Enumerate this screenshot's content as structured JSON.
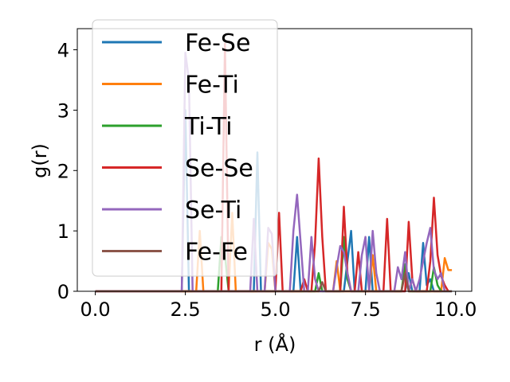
{
  "chart_data": {
    "type": "line",
    "xlabel": "r (Å)",
    "ylabel": "g(r)",
    "xlim": [
      -0.5,
      10.45
    ],
    "ylim": [
      0,
      4.35
    ],
    "xticks": [
      "0.0",
      "2.5",
      "5.0",
      "7.5",
      "10.0"
    ],
    "yticks": [
      "0",
      "1",
      "2",
      "3",
      "4"
    ],
    "grid": false,
    "legend_position": "upper-left",
    "series": [
      {
        "name": "Fe-Se",
        "color": "#1f77b4",
        "points": [
          [
            0,
            0
          ],
          [
            2.4,
            0
          ],
          [
            2.5,
            3.0
          ],
          [
            2.6,
            0
          ],
          [
            4.4,
            0
          ],
          [
            4.5,
            2.3
          ],
          [
            4.6,
            0
          ],
          [
            5.5,
            0
          ],
          [
            5.6,
            0.9
          ],
          [
            5.7,
            0
          ],
          [
            6.9,
            0
          ],
          [
            7.0,
            0.5
          ],
          [
            7.1,
            1.0
          ],
          [
            7.2,
            0
          ],
          [
            7.5,
            0
          ],
          [
            7.6,
            0.9
          ],
          [
            7.7,
            0
          ],
          [
            8.6,
            0
          ],
          [
            8.7,
            0.3
          ],
          [
            8.8,
            0
          ],
          [
            9.0,
            0
          ],
          [
            9.1,
            0.8
          ],
          [
            9.2,
            0.1
          ],
          [
            9.3,
            0.2
          ],
          [
            9.4,
            0
          ],
          [
            9.9,
            0
          ]
        ]
      },
      {
        "name": "Fe-Ti",
        "color": "#ff7f0e",
        "points": [
          [
            0,
            0
          ],
          [
            2.8,
            0
          ],
          [
            2.9,
            1.0
          ],
          [
            3.0,
            0
          ],
          [
            3.7,
            0
          ],
          [
            3.8,
            1.3
          ],
          [
            3.9,
            0
          ],
          [
            4.7,
            0
          ],
          [
            4.8,
            0.8
          ],
          [
            4.9,
            0.7
          ],
          [
            5.0,
            0
          ],
          [
            6.6,
            0
          ],
          [
            6.7,
            0.5
          ],
          [
            6.8,
            0
          ],
          [
            7.6,
            0
          ],
          [
            7.7,
            0.6
          ],
          [
            7.8,
            0
          ],
          [
            8.5,
            0
          ],
          [
            8.6,
            0.4
          ],
          [
            8.7,
            0
          ],
          [
            9.6,
            0
          ],
          [
            9.7,
            0.55
          ],
          [
            9.8,
            0.35
          ],
          [
            9.9,
            0.35
          ]
        ]
      },
      {
        "name": "Ti-Ti",
        "color": "#2ca02c",
        "points": [
          [
            0,
            0
          ],
          [
            3.4,
            0
          ],
          [
            3.5,
            0.9
          ],
          [
            3.6,
            0.6
          ],
          [
            3.7,
            0
          ],
          [
            6.1,
            0
          ],
          [
            6.2,
            0.3
          ],
          [
            6.3,
            0
          ],
          [
            6.8,
            0
          ],
          [
            6.9,
            0.9
          ],
          [
            7.0,
            0.2
          ],
          [
            7.1,
            0
          ],
          [
            8.5,
            0
          ],
          [
            8.6,
            0.45
          ],
          [
            8.7,
            0
          ],
          [
            9.3,
            0
          ],
          [
            9.4,
            0.4
          ],
          [
            9.5,
            0.1
          ],
          [
            9.6,
            0
          ]
        ]
      },
      {
        "name": "Se-Se",
        "color": "#d62728",
        "points": [
          [
            0,
            0
          ],
          [
            3.5,
            0
          ],
          [
            3.6,
            4.1
          ],
          [
            3.7,
            0
          ],
          [
            5.0,
            0
          ],
          [
            5.1,
            1.3
          ],
          [
            5.2,
            0
          ],
          [
            5.7,
            0
          ],
          [
            5.8,
            0.2
          ],
          [
            5.9,
            0
          ],
          [
            6.0,
            0
          ],
          [
            6.1,
            0.8
          ],
          [
            6.2,
            2.2
          ],
          [
            6.3,
            0.9
          ],
          [
            6.4,
            0
          ],
          [
            6.8,
            0
          ],
          [
            6.9,
            1.4
          ],
          [
            7.0,
            0.3
          ],
          [
            7.1,
            0
          ],
          [
            7.2,
            0
          ],
          [
            7.3,
            0.65
          ],
          [
            7.4,
            0
          ],
          [
            8.0,
            0
          ],
          [
            8.1,
            1.2
          ],
          [
            8.2,
            0
          ],
          [
            8.6,
            0
          ],
          [
            8.7,
            1.15
          ],
          [
            8.8,
            0.2
          ],
          [
            8.9,
            0
          ],
          [
            9.2,
            0
          ],
          [
            9.3,
            0.5
          ],
          [
            9.4,
            1.55
          ],
          [
            9.5,
            0.6
          ],
          [
            9.6,
            0.25
          ],
          [
            9.7,
            0.1
          ],
          [
            9.8,
            0
          ]
        ]
      },
      {
        "name": "Se-Ti",
        "color": "#9467bd",
        "points": [
          [
            0,
            0
          ],
          [
            2.4,
            0
          ],
          [
            2.5,
            3.95
          ],
          [
            2.6,
            3.5
          ],
          [
            2.7,
            0
          ],
          [
            4.3,
            0
          ],
          [
            4.4,
            1.2
          ],
          [
            4.5,
            0
          ],
          [
            4.7,
            0
          ],
          [
            4.8,
            1.05
          ],
          [
            4.9,
            0.95
          ],
          [
            5.0,
            0
          ],
          [
            5.4,
            0
          ],
          [
            5.5,
            1.0
          ],
          [
            5.6,
            1.6
          ],
          [
            5.7,
            0.8
          ],
          [
            5.8,
            0
          ],
          [
            5.9,
            0
          ],
          [
            6.0,
            0.9
          ],
          [
            6.1,
            0.2
          ],
          [
            6.2,
            0
          ],
          [
            6.6,
            0
          ],
          [
            6.7,
            0.4
          ],
          [
            6.8,
            0.75
          ],
          [
            6.9,
            0.65
          ],
          [
            7.0,
            0.3
          ],
          [
            7.1,
            0
          ],
          [
            7.3,
            0
          ],
          [
            7.4,
            0.6
          ],
          [
            7.5,
            0.9
          ],
          [
            7.6,
            0
          ],
          [
            7.7,
            1.0
          ],
          [
            7.8,
            0.3
          ],
          [
            7.9,
            0
          ],
          [
            8.3,
            0
          ],
          [
            8.4,
            0.4
          ],
          [
            8.5,
            0.2
          ],
          [
            8.6,
            0.65
          ],
          [
            8.7,
            0
          ],
          [
            8.8,
            0.2
          ],
          [
            8.9,
            0
          ],
          [
            9.0,
            0.2
          ],
          [
            9.1,
            0.5
          ],
          [
            9.2,
            0.8
          ],
          [
            9.3,
            1.05
          ],
          [
            9.4,
            0.35
          ],
          [
            9.5,
            0.2
          ],
          [
            9.6,
            0.3
          ],
          [
            9.7,
            0
          ]
        ]
      },
      {
        "name": "Fe-Fe",
        "color": "#8c564b",
        "points": [
          [
            0,
            0
          ],
          [
            6.2,
            0
          ],
          [
            6.3,
            0.15
          ],
          [
            6.4,
            0
          ],
          [
            8.5,
            0
          ],
          [
            8.6,
            0.3
          ],
          [
            8.7,
            0
          ],
          [
            9.9,
            0
          ]
        ]
      }
    ]
  }
}
